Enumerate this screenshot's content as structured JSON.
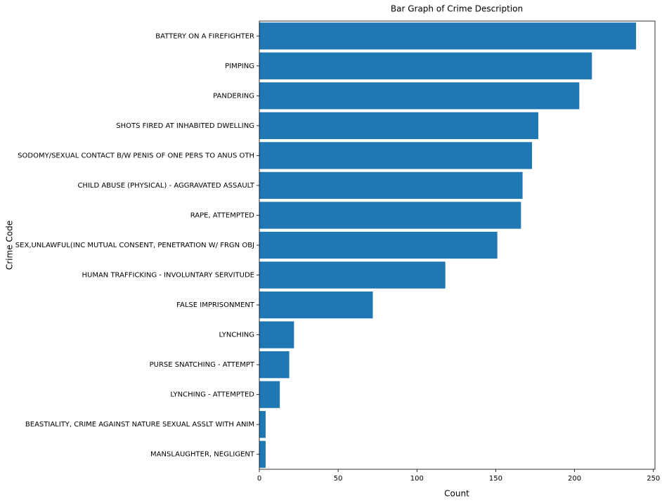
{
  "chart_data": {
    "type": "barh",
    "title": "Bar Graph of Crime Description",
    "xlabel": "Count",
    "ylabel": "Crime Code",
    "categories": [
      "BATTERY ON A FIREFIGHTER",
      "PIMPING",
      "PANDERING",
      "SHOTS FIRED AT INHABITED DWELLING",
      "SODOMY/SEXUAL CONTACT B/W PENIS OF ONE PERS TO ANUS OTH",
      "CHILD ABUSE (PHYSICAL) - AGGRAVATED ASSAULT",
      "RAPE, ATTEMPTED",
      "SEX,UNLAWFUL(INC MUTUAL CONSENT, PENETRATION W/ FRGN OBJ",
      "HUMAN TRAFFICKING - INVOLUNTARY SERVITUDE",
      "FALSE IMPRISONMENT",
      "LYNCHING",
      "PURSE SNATCHING - ATTEMPT",
      "LYNCHING - ATTEMPTED",
      "BEASTIALITY, CRIME AGAINST NATURE SEXUAL ASSLT WITH ANIM",
      "MANSLAUGHTER, NEGLIGENT"
    ],
    "values": [
      239,
      211,
      203,
      177,
      173,
      167,
      166,
      151,
      118,
      72,
      22,
      19,
      13,
      4,
      4
    ],
    "color": "#1f77b4",
    "xlim": [
      0,
      251
    ],
    "xticks": [
      0,
      50,
      100,
      150,
      200,
      250
    ]
  }
}
